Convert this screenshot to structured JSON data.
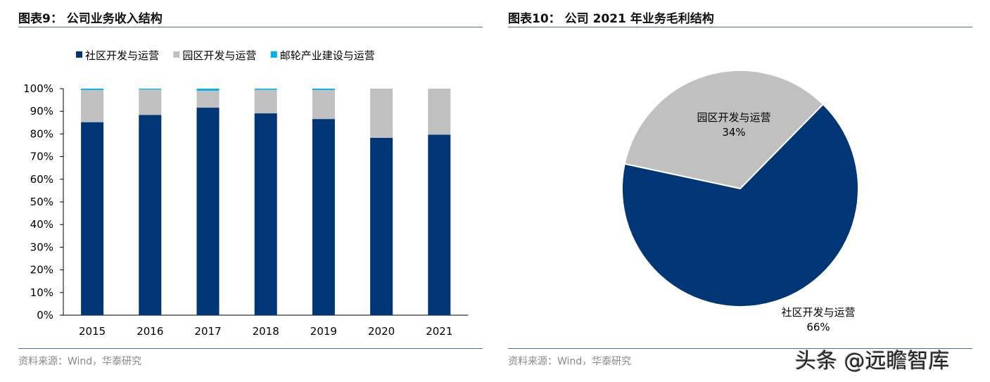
{
  "left": {
    "title": "图表9：  公司业务收入结构",
    "source": "资料来源：Wind，华泰研究"
  },
  "right": {
    "title": "图表10：  公司 2021 年业务毛利结构",
    "source": "资料来源：Wind，华泰研究"
  },
  "watermark": "头条 @远瞻智库",
  "chart_data": [
    {
      "type": "bar",
      "stacked": true,
      "categories": [
        "2015",
        "2016",
        "2017",
        "2018",
        "2019",
        "2020",
        "2021"
      ],
      "ylim": [
        0,
        100
      ],
      "yticks": [
        "0%",
        "10%",
        "20%",
        "30%",
        "40%",
        "50%",
        "60%",
        "70%",
        "80%",
        "90%",
        "100%"
      ],
      "legend_position": "top",
      "grid": false,
      "series": [
        {
          "name": "社区开发与运营",
          "color": "#003676",
          "values": [
            85.2,
            88.4,
            91.6,
            89.1,
            86.6,
            78.3,
            79.7
          ]
        },
        {
          "name": "园区开发与运营",
          "color": "#c0c0c0",
          "values": [
            14.2,
            11.2,
            7.5,
            10.4,
            12.8,
            21.7,
            20.3
          ]
        },
        {
          "name": "邮轮产业建设与运营",
          "color": "#00b0f0",
          "values": [
            0.6,
            0.4,
            0.9,
            0.5,
            0.6,
            0,
            0
          ]
        }
      ]
    },
    {
      "type": "pie",
      "slices": [
        {
          "label": "社区开发与运营",
          "value": 66,
          "text": "66%",
          "color": "#003676"
        },
        {
          "label": "园区开发与运营",
          "value": 34,
          "text": "34%",
          "color": "#c0c0c0"
        }
      ]
    }
  ]
}
